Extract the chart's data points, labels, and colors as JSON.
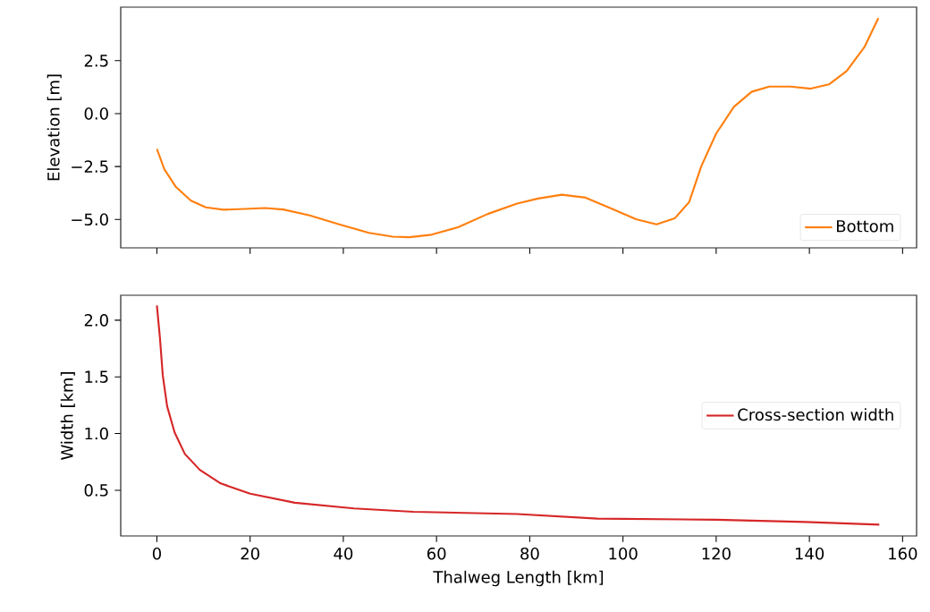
{
  "chart_data": [
    {
      "type": "line",
      "ylabel": "Elevation [m]",
      "x": [
        0,
        1.6,
        4.1,
        7.3,
        10.5,
        14.3,
        18.8,
        23.2,
        27.1,
        32.8,
        39.1,
        45.5,
        50.6,
        54.1,
        58.9,
        64.6,
        71.0,
        77.3,
        81.8,
        86.9,
        92.0,
        97.7,
        102.8,
        107.2,
        111.1,
        114.2,
        116.8,
        120.0,
        123.8,
        127.6,
        131.4,
        135.9,
        140.3,
        144.2,
        148.0,
        151.8,
        154.8
      ],
      "series": [
        {
          "name": "Bottom",
          "color": "#ff7f0e",
          "values": [
            -1.67,
            -2.63,
            -3.47,
            -4.11,
            -4.43,
            -4.54,
            -4.5,
            -4.46,
            -4.53,
            -4.81,
            -5.23,
            -5.63,
            -5.81,
            -5.84,
            -5.72,
            -5.37,
            -4.74,
            -4.25,
            -4.01,
            -3.83,
            -3.97,
            -4.5,
            -4.99,
            -5.23,
            -4.95,
            -4.18,
            -2.49,
            -0.94,
            0.32,
            1.03,
            1.28,
            1.28,
            1.18,
            1.38,
            2.01,
            3.14,
            4.51
          ]
        }
      ],
      "xlim": [
        -7.76,
        163.0
      ],
      "ylim": [
        -6.34,
        5.03
      ],
      "xticks": [
        0,
        20,
        40,
        60,
        80,
        100,
        120,
        140,
        160
      ],
      "yticks": [
        {
          "value": -5,
          "label": "−5.0"
        },
        {
          "value": -2.5,
          "label": "−2.5"
        },
        {
          "value": 0,
          "label": "0.0"
        },
        {
          "value": 2.5,
          "label": "2.5"
        }
      ],
      "tick_labels": "y",
      "legend": "bottom right"
    },
    {
      "type": "line",
      "xlabel": "Thalweg Length [km]",
      "ylabel": "Width [km]",
      "x": [
        0,
        0.64,
        1.27,
        2.2,
        3.8,
        6.0,
        9.2,
        13.7,
        20.0,
        29.6,
        42.3,
        55.0,
        77.3,
        94.5,
        120.0,
        139.1,
        155.0
      ],
      "series": [
        {
          "name": "Cross-section width",
          "color": "#d62728",
          "values": [
            2.13,
            1.85,
            1.51,
            1.24,
            1.01,
            0.82,
            0.68,
            0.56,
            0.47,
            0.39,
            0.34,
            0.31,
            0.29,
            0.25,
            0.24,
            0.22,
            0.197
          ]
        }
      ],
      "xlim": [
        -7.76,
        163.0
      ],
      "ylim": [
        0.097,
        2.22
      ],
      "xticks": [
        0,
        20,
        40,
        60,
        80,
        100,
        120,
        140,
        160
      ],
      "yticks": [
        {
          "value": 0.5,
          "label": "0.5"
        },
        {
          "value": 1.0,
          "label": "1.0"
        },
        {
          "value": 1.5,
          "label": "1.5"
        },
        {
          "value": 2.0,
          "label": "2.0"
        }
      ],
      "legend": "right"
    }
  ]
}
